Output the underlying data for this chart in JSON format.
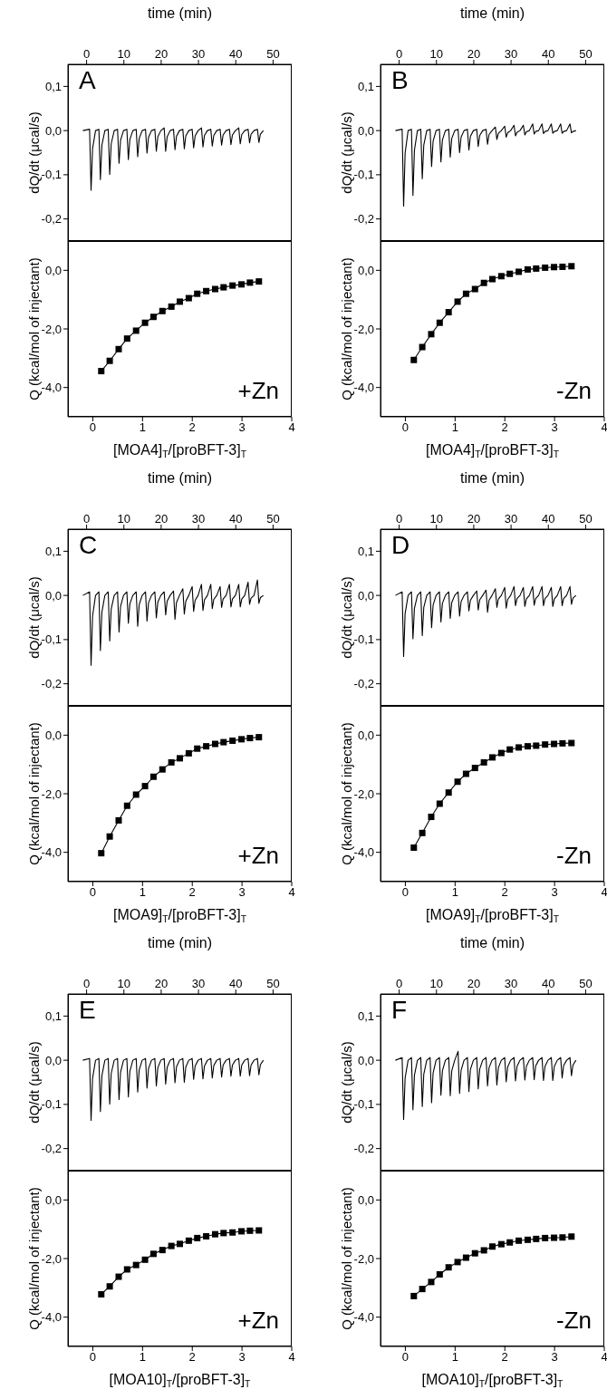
{
  "chart_data": [
    {
      "type": "line",
      "xlabel": "time (min)",
      "ylabel": "dQ/dt (μcal/s)",
      "xlim": [
        -5,
        55
      ],
      "xticks": [
        0,
        10,
        20,
        30,
        40,
        50
      ],
      "ylim": [
        -0.25,
        0.15
      ],
      "yticks": [
        {
          "value": 0.1,
          "label": "0,1"
        },
        {
          "value": 0,
          "label": "0,0"
        },
        {
          "value": -0.1,
          "label": "-0,1"
        },
        {
          "value": -0.2,
          "label": "-0,2"
        }
      ],
      "annotations": [
        "A"
      ],
      "color": "#000000",
      "x": [
        -1,
        0.8,
        1.2,
        1.6,
        2.4,
        3.3,
        3.7,
        4.1,
        4.9,
        5.8,
        6.2,
        6.6,
        7.4,
        8.3,
        8.7,
        9.1,
        9.9,
        10.8,
        11.2,
        11.6,
        12.4,
        13.3,
        13.7,
        14.1,
        14.9,
        15.8,
        16.2,
        16.6,
        17.4,
        18.3,
        18.7,
        19.1,
        19.9,
        20.8,
        21.2,
        21.6,
        22.4,
        23.3,
        23.7,
        24.1,
        24.9,
        25.8,
        26.2,
        26.6,
        27.4,
        28.3,
        28.7,
        29.1,
        29.9,
        30.8,
        31.2,
        31.6,
        32.4,
        33.3,
        33.7,
        34.1,
        34.9,
        35.8,
        36.2,
        36.6,
        37.4,
        38.3,
        38.7,
        39.1,
        39.9,
        40.8,
        41.2,
        41.6,
        42.4,
        43.3,
        43.7,
        44.1,
        44.9,
        45.8,
        46.2,
        46.6,
        47.4
      ],
      "values": [
        0,
        0.003,
        -0.135,
        -0.041,
        0,
        0.003,
        -0.111,
        -0.033,
        0,
        0.003,
        -0.099,
        -0.03,
        0,
        0.003,
        -0.074,
        -0.022,
        0,
        0.003,
        -0.066,
        -0.02,
        0,
        0.003,
        -0.059,
        -0.018,
        0,
        0.003,
        -0.051,
        -0.015,
        0,
        0.003,
        -0.047,
        -0.014,
        0,
        0.006,
        -0.047,
        -0.014,
        0,
        0.003,
        -0.043,
        -0.013,
        0,
        0.003,
        -0.041,
        -0.012,
        0,
        0.003,
        -0.039,
        -0.012,
        0,
        0.006,
        -0.037,
        -0.011,
        0,
        0.003,
        -0.035,
        -0.011,
        0,
        0.003,
        -0.033,
        -0.01,
        0,
        0.003,
        -0.032,
        -0.01,
        0,
        0.006,
        -0.03,
        -0.009,
        0,
        0.003,
        -0.028,
        -0.008,
        0,
        0.003,
        -0.027,
        -0.008,
        0
      ]
    },
    {
      "type": "line",
      "xlabel": "[MOA4]$_{T}$/[proBFT-3]$_{T}$",
      "ylabel": "Q (kcal/mol of injectant)",
      "xlim": [
        -0.5,
        4
      ],
      "xticks": [
        0,
        1,
        2,
        3,
        4
      ],
      "ylim": [
        -5,
        1
      ],
      "yticks": [
        {
          "value": 0,
          "label": "0,0"
        },
        {
          "value": -2,
          "label": "-2,0"
        },
        {
          "value": -4,
          "label": "-4,0"
        }
      ],
      "annotations": [
        "+Zn"
      ],
      "color": "#000000",
      "marker": "square",
      "x": [
        0.17,
        0.34,
        0.52,
        0.69,
        0.87,
        1.05,
        1.22,
        1.4,
        1.58,
        1.75,
        1.93,
        2.1,
        2.28,
        2.46,
        2.63,
        2.81,
        2.99,
        3.16,
        3.34
      ],
      "values": [
        -3.44,
        -3.09,
        -2.69,
        -2.33,
        -2.06,
        -1.79,
        -1.59,
        -1.39,
        -1.24,
        -1.07,
        -0.95,
        -0.8,
        -0.71,
        -0.64,
        -0.58,
        -0.52,
        -0.48,
        -0.42,
        -0.38
      ]
    },
    {
      "type": "line",
      "xlabel": "time (min)",
      "ylabel": "dQ/dt (μcal/s)",
      "xlim": [
        -5,
        55
      ],
      "xticks": [
        0,
        10,
        20,
        30,
        40,
        50
      ],
      "ylim": [
        -0.25,
        0.15
      ],
      "yticks": [
        {
          "value": 0.1,
          "label": "0,1"
        },
        {
          "value": 0,
          "label": "0,0"
        },
        {
          "value": -0.1,
          "label": "-0,1"
        },
        {
          "value": -0.2,
          "label": "-0,2"
        }
      ],
      "annotations": [
        "B"
      ],
      "color": "#000000",
      "x": [
        -1,
        0.8,
        1.2,
        1.6,
        2.4,
        3.3,
        3.7,
        4.1,
        4.9,
        5.8,
        6.2,
        6.6,
        7.4,
        8.3,
        8.7,
        9.1,
        9.9,
        10.8,
        11.2,
        11.6,
        12.4,
        13.3,
        13.7,
        14.1,
        14.9,
        15.8,
        16.2,
        16.6,
        17.4,
        18.3,
        18.7,
        19.1,
        19.9,
        20.8,
        21.2,
        21.6,
        22.4,
        23.3,
        23.7,
        24.1,
        24.9,
        25.8,
        26.2,
        26.6,
        27.4,
        28.3,
        28.7,
        29.1,
        29.9,
        30.8,
        31.2,
        31.6,
        32.4,
        33.3,
        33.7,
        34.1,
        34.9,
        35.8,
        36.2,
        36.6,
        37.4,
        38.3,
        38.7,
        39.1,
        39.9,
        40.8,
        41.2,
        41.6,
        42.4,
        43.3,
        43.7,
        44.1,
        44.9,
        45.8,
        46.2,
        46.6,
        47.4
      ],
      "values": [
        0,
        0.003,
        -0.171,
        -0.051,
        0,
        0.003,
        -0.147,
        -0.044,
        0,
        0.003,
        -0.109,
        -0.033,
        0,
        0.003,
        -0.081,
        -0.024,
        0,
        0.003,
        -0.071,
        -0.021,
        0,
        0.003,
        -0.06,
        -0.018,
        0,
        0.003,
        -0.05,
        -0.015,
        0,
        0.003,
        -0.044,
        -0.013,
        0,
        0.003,
        -0.036,
        -0.011,
        0,
        0.003,
        -0.031,
        -0.009,
        0,
        0.008,
        -0.02,
        -0.006,
        0,
        0.01,
        -0.015,
        -0.005,
        0,
        0.012,
        -0.012,
        -0.004,
        0,
        0.012,
        -0.01,
        -0.003,
        0,
        0.015,
        -0.008,
        -0.002,
        0,
        0.015,
        -0.007,
        -0.002,
        0,
        0.015,
        -0.006,
        -0.002,
        0,
        0.015,
        -0.006,
        -0.002,
        0,
        0.015,
        -0.005,
        -0.002,
        0
      ]
    },
    {
      "type": "line",
      "xlabel": "[MOA4]$_{T}$/[proBFT-3]$_{T}$",
      "ylabel": "Q (kcal/mol of injectant)",
      "xlim": [
        -0.5,
        4
      ],
      "xticks": [
        0,
        1,
        2,
        3,
        4
      ],
      "ylim": [
        -5,
        1
      ],
      "yticks": [
        {
          "value": 0,
          "label": "0,0"
        },
        {
          "value": -2,
          "label": "-2,0"
        },
        {
          "value": -4,
          "label": "-4,0"
        }
      ],
      "annotations": [
        "-Zn"
      ],
      "color": "#000000",
      "marker": "square",
      "x": [
        0.17,
        0.34,
        0.52,
        0.69,
        0.87,
        1.05,
        1.22,
        1.4,
        1.58,
        1.75,
        1.93,
        2.1,
        2.28,
        2.46,
        2.63,
        2.81,
        2.99,
        3.16,
        3.34
      ],
      "values": [
        -3.06,
        -2.62,
        -2.18,
        -1.79,
        -1.43,
        -1.07,
        -0.8,
        -0.64,
        -0.43,
        -0.3,
        -0.2,
        -0.12,
        -0.05,
        0.03,
        0.06,
        0.09,
        0.11,
        0.12,
        0.14
      ]
    },
    {
      "type": "line",
      "xlabel": "time (min)",
      "ylabel": "dQ/dt (μcal/s)",
      "xlim": [
        -5,
        55
      ],
      "xticks": [
        0,
        10,
        20,
        30,
        40,
        50
      ],
      "ylim": [
        -0.25,
        0.15
      ],
      "yticks": [
        {
          "value": 0.1,
          "label": "0,1"
        },
        {
          "value": 0,
          "label": "0,0"
        },
        {
          "value": -0.1,
          "label": "-0,1"
        },
        {
          "value": -0.2,
          "label": "-0,2"
        }
      ],
      "annotations": [
        "C"
      ],
      "color": "#000000",
      "x": [
        -1,
        0.8,
        1.2,
        1.6,
        2.4,
        3.3,
        3.7,
        4.1,
        4.9,
        5.8,
        6.2,
        6.6,
        7.4,
        8.3,
        8.7,
        9.1,
        9.9,
        10.8,
        11.2,
        11.6,
        12.4,
        13.3,
        13.7,
        14.1,
        14.9,
        15.8,
        16.2,
        16.6,
        17.4,
        18.3,
        18.7,
        19.1,
        19.9,
        20.8,
        21.2,
        21.6,
        22.4,
        23.3,
        23.7,
        24.1,
        24.9,
        25.8,
        26.2,
        26.6,
        27.4,
        28.3,
        28.7,
        29.1,
        29.9,
        30.8,
        31.2,
        31.6,
        32.4,
        33.3,
        33.7,
        34.1,
        34.9,
        35.8,
        36.2,
        36.6,
        37.4,
        38.3,
        38.7,
        39.1,
        39.9,
        40.8,
        41.2,
        41.6,
        42.4,
        43.3,
        43.7,
        44.1,
        44.9,
        45.8,
        46.2,
        46.6,
        47.4
      ],
      "values": [
        0,
        0.008,
        -0.158,
        -0.047,
        0,
        0.008,
        -0.125,
        -0.038,
        0,
        0.008,
        -0.103,
        -0.031,
        0,
        0.008,
        -0.083,
        -0.025,
        0,
        0.008,
        -0.063,
        -0.019,
        0,
        0.008,
        -0.07,
        -0.021,
        0,
        0.008,
        -0.058,
        -0.017,
        0,
        0.008,
        -0.051,
        -0.015,
        0,
        0.008,
        -0.044,
        -0.013,
        0,
        0.01,
        -0.054,
        -0.016,
        0,
        0.015,
        -0.042,
        -0.013,
        0,
        0.02,
        -0.036,
        -0.011,
        0,
        0.025,
        -0.034,
        -0.01,
        0,
        0.025,
        -0.03,
        -0.009,
        0,
        0.02,
        -0.027,
        -0.008,
        0,
        0.025,
        -0.026,
        -0.008,
        0,
        0.025,
        -0.026,
        -0.008,
        0,
        0.03,
        -0.02,
        -0.006,
        0,
        0.035,
        -0.018,
        -0.005,
        0
      ]
    },
    {
      "type": "line",
      "xlabel": "[MOA9]$_{T}$/[proBFT-3]$_{T}$",
      "ylabel": "Q (kcal/mol of injectant)",
      "xlim": [
        -0.5,
        4
      ],
      "xticks": [
        0,
        1,
        2,
        3,
        4
      ],
      "ylim": [
        -5,
        1
      ],
      "yticks": [
        {
          "value": 0,
          "label": "0,0"
        },
        {
          "value": -2,
          "label": "-2,0"
        },
        {
          "value": -4,
          "label": "-4,0"
        }
      ],
      "annotations": [
        "+Zn"
      ],
      "color": "#000000",
      "marker": "square",
      "x": [
        0.17,
        0.34,
        0.52,
        0.69,
        0.87,
        1.05,
        1.22,
        1.4,
        1.58,
        1.75,
        1.93,
        2.1,
        2.28,
        2.46,
        2.63,
        2.81,
        2.99,
        3.16,
        3.34
      ],
      "values": [
        -4.03,
        -3.46,
        -2.91,
        -2.41,
        -2.03,
        -1.74,
        -1.42,
        -1.17,
        -0.93,
        -0.79,
        -0.62,
        -0.46,
        -0.38,
        -0.3,
        -0.24,
        -0.19,
        -0.14,
        -0.1,
        -0.07
      ]
    },
    {
      "type": "line",
      "xlabel": "time (min)",
      "ylabel": "dQ/dt (μcal/s)",
      "xlim": [
        -5,
        55
      ],
      "xticks": [
        0,
        10,
        20,
        30,
        40,
        50
      ],
      "ylim": [
        -0.25,
        0.15
      ],
      "yticks": [
        {
          "value": 0.1,
          "label": "0,1"
        },
        {
          "value": 0,
          "label": "0,0"
        },
        {
          "value": -0.1,
          "label": "-0,1"
        },
        {
          "value": -0.2,
          "label": "-0,2"
        }
      ],
      "annotations": [
        "D"
      ],
      "color": "#000000",
      "x": [
        -1,
        0.8,
        1.2,
        1.6,
        2.4,
        3.3,
        3.7,
        4.1,
        4.9,
        5.8,
        6.2,
        6.6,
        7.4,
        8.3,
        8.7,
        9.1,
        9.9,
        10.8,
        11.2,
        11.6,
        12.4,
        13.3,
        13.7,
        14.1,
        14.9,
        15.8,
        16.2,
        16.6,
        17.4,
        18.3,
        18.7,
        19.1,
        19.9,
        20.8,
        21.2,
        21.6,
        22.4,
        23.3,
        23.7,
        24.1,
        24.9,
        25.8,
        26.2,
        26.6,
        27.4,
        28.3,
        28.7,
        29.1,
        29.9,
        30.8,
        31.2,
        31.6,
        32.4,
        33.3,
        33.7,
        34.1,
        34.9,
        35.8,
        36.2,
        36.6,
        37.4,
        38.3,
        38.7,
        39.1,
        39.9,
        40.8,
        41.2,
        41.6,
        42.4,
        43.3,
        43.7,
        44.1,
        44.9,
        45.8,
        46.2,
        46.6,
        47.4
      ],
      "values": [
        0,
        0.008,
        -0.138,
        -0.041,
        0,
        0.008,
        -0.098,
        -0.029,
        0,
        0.008,
        -0.091,
        -0.027,
        0,
        0.008,
        -0.073,
        -0.022,
        0,
        0.008,
        -0.06,
        -0.018,
        0,
        0.008,
        -0.052,
        -0.016,
        0,
        0.008,
        -0.047,
        -0.014,
        0,
        0.008,
        -0.035,
        -0.011,
        0,
        0.01,
        -0.033,
        -0.01,
        0,
        0.012,
        -0.038,
        -0.011,
        0,
        0.015,
        -0.027,
        -0.008,
        0,
        0.018,
        -0.029,
        -0.009,
        0,
        0.02,
        -0.023,
        -0.007,
        0,
        0.018,
        -0.025,
        -0.008,
        0,
        0.02,
        -0.022,
        -0.007,
        0,
        0.02,
        -0.023,
        -0.007,
        0,
        0.018,
        -0.025,
        -0.008,
        0,
        0.02,
        -0.023,
        -0.007,
        0,
        0.02,
        -0.02,
        -0.006,
        0
      ]
    },
    {
      "type": "line",
      "xlabel": "[MOA9]$_{T}$/[proBFT-3]$_{T}$",
      "ylabel": "Q (kcal/mol of injectant)",
      "xlim": [
        -0.5,
        4
      ],
      "xticks": [
        0,
        1,
        2,
        3,
        4
      ],
      "ylim": [
        -5,
        1
      ],
      "yticks": [
        {
          "value": 0,
          "label": "0,0"
        },
        {
          "value": -2,
          "label": "-2,0"
        },
        {
          "value": -4,
          "label": "-4,0"
        }
      ],
      "annotations": [
        "-Zn"
      ],
      "color": "#000000",
      "marker": "square",
      "x": [
        0.17,
        0.34,
        0.52,
        0.69,
        0.87,
        1.05,
        1.22,
        1.4,
        1.58,
        1.75,
        1.93,
        2.1,
        2.28,
        2.46,
        2.63,
        2.81,
        2.99,
        3.16,
        3.34
      ],
      "values": [
        -3.84,
        -3.34,
        -2.79,
        -2.34,
        -1.96,
        -1.59,
        -1.32,
        -1.12,
        -0.93,
        -0.76,
        -0.61,
        -0.49,
        -0.42,
        -0.38,
        -0.36,
        -0.32,
        -0.3,
        -0.28,
        -0.27
      ]
    },
    {
      "type": "line",
      "xlabel": "time (min)",
      "ylabel": "dQ/dt (μcal/s)",
      "xlim": [
        -5,
        55
      ],
      "xticks": [
        0,
        10,
        20,
        30,
        40,
        50
      ],
      "ylim": [
        -0.25,
        0.15
      ],
      "yticks": [
        {
          "value": 0.1,
          "label": "0,1"
        },
        {
          "value": 0,
          "label": "0,0"
        },
        {
          "value": -0.1,
          "label": "-0,1"
        },
        {
          "value": -0.2,
          "label": "-0,2"
        }
      ],
      "annotations": [
        "E"
      ],
      "color": "#000000",
      "x": [
        -1,
        0.8,
        1.2,
        1.6,
        2.4,
        3.3,
        3.7,
        4.1,
        4.9,
        5.8,
        6.2,
        6.6,
        7.4,
        8.3,
        8.7,
        9.1,
        9.9,
        10.8,
        11.2,
        11.6,
        12.4,
        13.3,
        13.7,
        14.1,
        14.9,
        15.8,
        16.2,
        16.6,
        17.4,
        18.3,
        18.7,
        19.1,
        19.9,
        20.8,
        21.2,
        21.6,
        22.4,
        23.3,
        23.7,
        24.1,
        24.9,
        25.8,
        26.2,
        26.6,
        27.4,
        28.3,
        28.7,
        29.1,
        29.9,
        30.8,
        31.2,
        31.6,
        32.4,
        33.3,
        33.7,
        34.1,
        34.9,
        35.8,
        36.2,
        36.6,
        37.4,
        38.3,
        38.7,
        39.1,
        39.9,
        40.8,
        41.2,
        41.6,
        42.4,
        43.3,
        43.7,
        44.1,
        44.9,
        45.8,
        46.2,
        46.6,
        47.4
      ],
      "values": [
        0,
        0.004,
        -0.136,
        -0.041,
        0,
        0.004,
        -0.116,
        -0.035,
        0,
        0.004,
        -0.099,
        -0.03,
        0,
        0.004,
        -0.089,
        -0.027,
        0,
        0.004,
        -0.083,
        -0.025,
        0,
        0.004,
        -0.072,
        -0.022,
        0,
        0.004,
        -0.063,
        -0.019,
        0,
        0.004,
        -0.058,
        -0.017,
        0,
        0.004,
        -0.054,
        -0.016,
        0,
        0.004,
        -0.051,
        -0.015,
        0,
        0.004,
        -0.05,
        -0.015,
        0,
        0.004,
        -0.043,
        -0.013,
        0,
        0.004,
        -0.042,
        -0.013,
        0,
        0.004,
        -0.04,
        -0.012,
        0,
        0.004,
        -0.038,
        -0.011,
        0,
        0.004,
        -0.036,
        -0.011,
        0,
        0.004,
        -0.036,
        -0.011,
        0,
        0.004,
        -0.035,
        -0.011,
        0,
        0.004,
        -0.033,
        -0.01,
        0
      ]
    },
    {
      "type": "line",
      "xlabel": "[MOA10]$_{T}$/[proBFT-3]$_{T}$",
      "ylabel": "Q (kcal/mol of injectant)",
      "xlim": [
        -0.5,
        4
      ],
      "xticks": [
        0,
        1,
        2,
        3,
        4
      ],
      "ylim": [
        -5,
        1
      ],
      "yticks": [
        {
          "value": 0,
          "label": "0,0"
        },
        {
          "value": -2,
          "label": "-2,0"
        },
        {
          "value": -4,
          "label": "-4,0"
        }
      ],
      "annotations": [
        "+Zn"
      ],
      "color": "#000000",
      "marker": "square",
      "x": [
        0.17,
        0.34,
        0.52,
        0.69,
        0.87,
        1.05,
        1.22,
        1.4,
        1.58,
        1.75,
        1.93,
        2.1,
        2.28,
        2.46,
        2.63,
        2.81,
        2.99,
        3.16,
        3.34
      ],
      "values": [
        -3.22,
        -2.95,
        -2.62,
        -2.37,
        -2.22,
        -2.04,
        -1.84,
        -1.71,
        -1.57,
        -1.5,
        -1.39,
        -1.3,
        -1.24,
        -1.17,
        -1.13,
        -1.11,
        -1.07,
        -1.05,
        -1.04
      ]
    },
    {
      "type": "line",
      "xlabel": "time (min)",
      "ylabel": "dQ/dt (μcal/s)",
      "xlim": [
        -5,
        55
      ],
      "xticks": [
        0,
        10,
        20,
        30,
        40,
        50
      ],
      "ylim": [
        -0.25,
        0.15
      ],
      "yticks": [
        {
          "value": 0.1,
          "label": "0,1"
        },
        {
          "value": 0,
          "label": "0,0"
        },
        {
          "value": -0.1,
          "label": "-0,1"
        },
        {
          "value": -0.2,
          "label": "-0,2"
        }
      ],
      "annotations": [
        "F"
      ],
      "color": "#000000",
      "x": [
        -1,
        0.8,
        1.2,
        1.6,
        2.4,
        3.3,
        3.7,
        4.1,
        4.9,
        5.8,
        6.2,
        6.6,
        7.4,
        8.3,
        8.7,
        9.1,
        9.9,
        10.8,
        11.2,
        11.6,
        12.4,
        13.3,
        13.7,
        14.1,
        14.9,
        15.8,
        16.2,
        16.6,
        17.4,
        18.3,
        18.7,
        19.1,
        19.9,
        20.8,
        21.2,
        21.6,
        22.4,
        23.3,
        23.7,
        24.1,
        24.9,
        25.8,
        26.2,
        26.6,
        27.4,
        28.3,
        28.7,
        29.1,
        29.9,
        30.8,
        31.2,
        31.6,
        32.4,
        33.3,
        33.7,
        34.1,
        34.9,
        35.8,
        36.2,
        36.6,
        37.4,
        38.3,
        38.7,
        39.1,
        39.9,
        40.8,
        41.2,
        41.6,
        42.4,
        43.3,
        43.7,
        44.1,
        44.9,
        45.8,
        46.2,
        46.6,
        47.4
      ],
      "values": [
        0,
        0.006,
        -0.134,
        -0.04,
        0,
        0.006,
        -0.112,
        -0.034,
        0,
        0.006,
        -0.105,
        -0.032,
        0,
        0.006,
        -0.096,
        -0.029,
        0,
        0.006,
        -0.079,
        -0.024,
        0,
        0.006,
        -0.08,
        -0.024,
        0,
        0.02,
        -0.075,
        -0.023,
        0,
        0.006,
        -0.071,
        -0.021,
        0,
        0.006,
        -0.065,
        -0.02,
        0,
        0.006,
        -0.058,
        -0.017,
        0,
        0.006,
        -0.056,
        -0.017,
        0,
        0.006,
        -0.049,
        -0.015,
        0,
        0.006,
        -0.047,
        -0.014,
        0,
        0.006,
        -0.045,
        -0.014,
        0,
        0.006,
        -0.044,
        -0.013,
        0,
        0.006,
        -0.046,
        -0.014,
        0,
        0.006,
        -0.046,
        -0.014,
        0,
        0.006,
        -0.04,
        -0.012,
        0,
        0.006,
        -0.035,
        -0.011,
        0
      ]
    },
    {
      "type": "line",
      "xlabel": "[MOA10]$_{T}$/[proBFT-3]$_{T}$",
      "ylabel": "Q (kcal/mol of injectant)",
      "xlim": [
        -0.5,
        4
      ],
      "xticks": [
        0,
        1,
        2,
        3,
        4
      ],
      "ylim": [
        -5,
        1
      ],
      "yticks": [
        {
          "value": 0,
          "label": "0,0"
        },
        {
          "value": -2,
          "label": "-2,0"
        },
        {
          "value": -4,
          "label": "-4,0"
        }
      ],
      "annotations": [
        "-Zn"
      ],
      "color": "#000000",
      "marker": "square",
      "x": [
        0.17,
        0.34,
        0.52,
        0.69,
        0.87,
        1.05,
        1.22,
        1.4,
        1.58,
        1.75,
        1.93,
        2.1,
        2.28,
        2.46,
        2.63,
        2.81,
        2.99,
        3.16,
        3.34
      ],
      "values": [
        -3.28,
        -3.04,
        -2.8,
        -2.54,
        -2.3,
        -2.12,
        -1.97,
        -1.82,
        -1.72,
        -1.59,
        -1.51,
        -1.45,
        -1.39,
        -1.36,
        -1.33,
        -1.3,
        -1.29,
        -1.28,
        -1.25
      ]
    }
  ]
}
